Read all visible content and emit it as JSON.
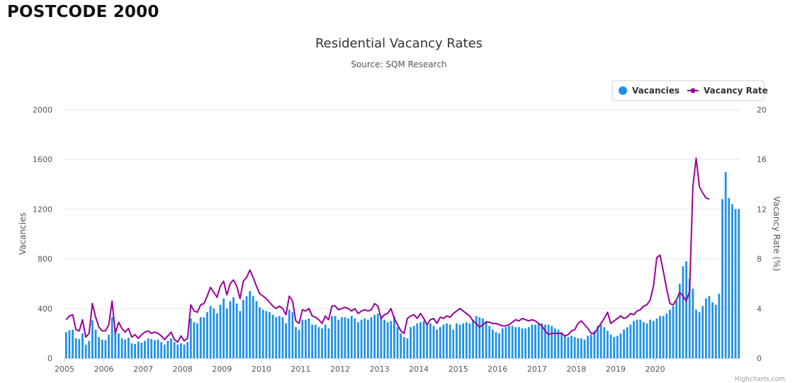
{
  "page": {
    "heading": "POSTCODE 2000"
  },
  "credits": "Highcharts.com",
  "colors": {
    "bars": "#1e90e8",
    "line": "#990099",
    "grid": "#e6e6e6",
    "axis": "#ccd6eb"
  },
  "chart_data": {
    "type": "bar+line",
    "title": "Residential Vacancy Rates",
    "subtitle": "Source: SQM Research",
    "ylabel": "Vacancies",
    "y2label": "Vacancy Rate (%)",
    "ylim": [
      0,
      2000
    ],
    "y2lim": [
      0,
      20
    ],
    "y_ticks": [
      "0",
      "400",
      "800",
      "1200",
      "1600",
      "2000"
    ],
    "y2_ticks": [
      "0",
      "4",
      "8",
      "12",
      "16",
      "20"
    ],
    "x_ticks": [
      "2005",
      "2006",
      "2007",
      "2008",
      "2009",
      "2010",
      "2011",
      "2012",
      "2013",
      "2014",
      "2015",
      "2016",
      "2017",
      "2018",
      "2019",
      "2020"
    ],
    "x_start_year": 2005,
    "legend": [
      "Vacancies",
      "Vacancy Rate"
    ],
    "legend_position": "top-right",
    "series": [
      {
        "name": "Vacancies",
        "type": "column",
        "axis": "left",
        "values": [
          210,
          225,
          230,
          160,
          155,
          200,
          110,
          140,
          305,
          230,
          170,
          150,
          145,
          190,
          330,
          240,
          200,
          160,
          150,
          165,
          120,
          115,
          135,
          125,
          140,
          160,
          155,
          145,
          150,
          130,
          110,
          140,
          160,
          130,
          110,
          120,
          110,
          130,
          320,
          290,
          280,
          330,
          330,
          370,
          420,
          400,
          360,
          430,
          480,
          400,
          460,
          490,
          440,
          380,
          470,
          500,
          540,
          500,
          460,
          410,
          390,
          380,
          370,
          350,
          330,
          340,
          330,
          280,
          390,
          370,
          250,
          230,
          310,
          310,
          320,
          270,
          270,
          250,
          240,
          270,
          240,
          340,
          340,
          310,
          330,
          330,
          320,
          340,
          320,
          290,
          310,
          320,
          310,
          330,
          350,
          360,
          340,
          310,
          290,
          300,
          340,
          250,
          200,
          170,
          160,
          250,
          260,
          280,
          290,
          300,
          270,
          280,
          260,
          230,
          250,
          270,
          280,
          270,
          230,
          280,
          270,
          280,
          290,
          280,
          310,
          340,
          330,
          320,
          300,
          260,
          230,
          210,
          200,
          240,
          250,
          260,
          260,
          250,
          250,
          240,
          240,
          250,
          270,
          270,
          280,
          280,
          270,
          270,
          260,
          240,
          230,
          210,
          180,
          170,
          180,
          170,
          160,
          160,
          150,
          180,
          190,
          220,
          260,
          270,
          250,
          220,
          190,
          170,
          180,
          200,
          230,
          250,
          270,
          300,
          310,
          310,
          290,
          280,
          310,
          300,
          320,
          340,
          340,
          360,
          390,
          420,
          460,
          600,
          740,
          780,
          640,
          560,
          390,
          370,
          420,
          480,
          500,
          450,
          430,
          520,
          1280,
          1500,
          1290,
          1240,
          1200,
          1200
        ]
      },
      {
        "name": "Vacancy Rate",
        "type": "line",
        "axis": "right",
        "values": [
          3.1,
          3.4,
          3.5,
          2.3,
          2.2,
          3.1,
          1.7,
          2.0,
          4.4,
          3.3,
          2.5,
          2.2,
          2.2,
          2.7,
          4.6,
          2.0,
          2.9,
          2.4,
          2.1,
          2.4,
          1.7,
          1.9,
          1.6,
          1.9,
          2.1,
          2.2,
          2.0,
          2.1,
          2.0,
          1.8,
          1.5,
          1.8,
          2.1,
          1.5,
          1.3,
          1.8,
          1.4,
          1.6,
          4.3,
          3.8,
          3.7,
          4.3,
          4.4,
          5.0,
          5.7,
          5.3,
          4.9,
          5.8,
          6.2,
          5.1,
          6.0,
          6.3,
          5.8,
          4.8,
          6.2,
          6.5,
          7.1,
          6.5,
          5.8,
          5.2,
          5.0,
          4.8,
          4.5,
          4.2,
          4.0,
          4.2,
          4.0,
          3.5,
          5.0,
          4.6,
          3.0,
          2.8,
          3.9,
          3.8,
          4.0,
          3.4,
          3.3,
          3.1,
          2.8,
          3.4,
          3.1,
          4.2,
          4.2,
          3.9,
          4.0,
          4.1,
          4.0,
          3.8,
          4.0,
          3.6,
          3.8,
          3.9,
          3.8,
          3.9,
          4.4,
          4.2,
          3.2,
          3.5,
          3.6,
          4.0,
          3.2,
          2.7,
          2.2,
          2.0,
          3.2,
          3.4,
          3.5,
          3.2,
          3.6,
          3.2,
          2.7,
          3.1,
          3.2,
          2.8,
          3.3,
          3.2,
          3.4,
          3.3,
          3.6,
          3.8,
          4.0,
          3.8,
          3.6,
          3.4,
          3.0,
          2.8,
          2.5,
          2.7,
          2.9,
          2.9,
          2.8,
          2.8,
          2.7,
          2.6,
          2.6,
          2.7,
          2.9,
          3.1,
          3.0,
          3.2,
          3.1,
          3.0,
          3.1,
          3.0,
          2.8,
          2.6,
          2.2,
          1.9,
          2.0,
          2.0,
          2.0,
          2.0,
          1.8,
          1.9,
          2.2,
          2.3,
          2.8,
          3.0,
          2.7,
          2.4,
          2.0,
          2.0,
          2.4,
          2.8,
          3.2,
          3.7,
          2.8,
          3.0,
          3.2,
          3.4,
          3.2,
          3.3,
          3.6,
          3.5,
          3.8,
          3.9,
          4.2,
          4.3,
          4.7,
          5.8,
          8.1,
          8.3,
          7.0,
          5.6,
          4.4,
          4.3,
          4.7,
          5.3,
          5.0,
          4.6,
          5.4,
          13.8,
          16.1,
          13.8,
          13.3,
          12.9,
          12.8
        ]
      }
    ]
  }
}
